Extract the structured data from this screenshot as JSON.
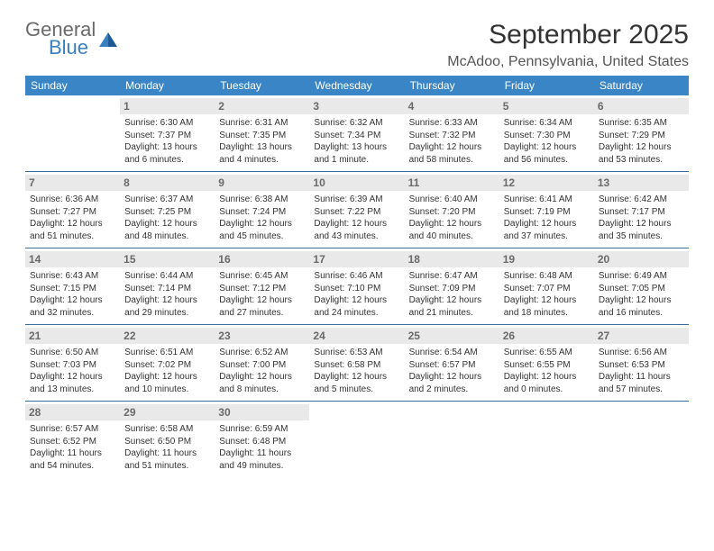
{
  "logo": {
    "text1": "General",
    "text2": "Blue"
  },
  "title": "September 2025",
  "location": "McAdoo, Pennsylvania, United States",
  "colors": {
    "header_bar": "#3a85c6",
    "header_text": "#ffffff",
    "daynum_bg": "#e9e9e9",
    "daynum_text": "#6a6a6a",
    "row_divider": "#3a6e9a",
    "logo_gray": "#6a6a6a",
    "logo_blue": "#3a7fc0"
  },
  "day_headers": [
    "Sunday",
    "Monday",
    "Tuesday",
    "Wednesday",
    "Thursday",
    "Friday",
    "Saturday"
  ],
  "weeks": [
    [
      {
        "blank": true
      },
      {
        "num": "1",
        "sunrise": "Sunrise: 6:30 AM",
        "sunset": "Sunset: 7:37 PM",
        "daylight": "Daylight: 13 hours and 6 minutes."
      },
      {
        "num": "2",
        "sunrise": "Sunrise: 6:31 AM",
        "sunset": "Sunset: 7:35 PM",
        "daylight": "Daylight: 13 hours and 4 minutes."
      },
      {
        "num": "3",
        "sunrise": "Sunrise: 6:32 AM",
        "sunset": "Sunset: 7:34 PM",
        "daylight": "Daylight: 13 hours and 1 minute."
      },
      {
        "num": "4",
        "sunrise": "Sunrise: 6:33 AM",
        "sunset": "Sunset: 7:32 PM",
        "daylight": "Daylight: 12 hours and 58 minutes."
      },
      {
        "num": "5",
        "sunrise": "Sunrise: 6:34 AM",
        "sunset": "Sunset: 7:30 PM",
        "daylight": "Daylight: 12 hours and 56 minutes."
      },
      {
        "num": "6",
        "sunrise": "Sunrise: 6:35 AM",
        "sunset": "Sunset: 7:29 PM",
        "daylight": "Daylight: 12 hours and 53 minutes."
      }
    ],
    [
      {
        "num": "7",
        "sunrise": "Sunrise: 6:36 AM",
        "sunset": "Sunset: 7:27 PM",
        "daylight": "Daylight: 12 hours and 51 minutes."
      },
      {
        "num": "8",
        "sunrise": "Sunrise: 6:37 AM",
        "sunset": "Sunset: 7:25 PM",
        "daylight": "Daylight: 12 hours and 48 minutes."
      },
      {
        "num": "9",
        "sunrise": "Sunrise: 6:38 AM",
        "sunset": "Sunset: 7:24 PM",
        "daylight": "Daylight: 12 hours and 45 minutes."
      },
      {
        "num": "10",
        "sunrise": "Sunrise: 6:39 AM",
        "sunset": "Sunset: 7:22 PM",
        "daylight": "Daylight: 12 hours and 43 minutes."
      },
      {
        "num": "11",
        "sunrise": "Sunrise: 6:40 AM",
        "sunset": "Sunset: 7:20 PM",
        "daylight": "Daylight: 12 hours and 40 minutes."
      },
      {
        "num": "12",
        "sunrise": "Sunrise: 6:41 AM",
        "sunset": "Sunset: 7:19 PM",
        "daylight": "Daylight: 12 hours and 37 minutes."
      },
      {
        "num": "13",
        "sunrise": "Sunrise: 6:42 AM",
        "sunset": "Sunset: 7:17 PM",
        "daylight": "Daylight: 12 hours and 35 minutes."
      }
    ],
    [
      {
        "num": "14",
        "sunrise": "Sunrise: 6:43 AM",
        "sunset": "Sunset: 7:15 PM",
        "daylight": "Daylight: 12 hours and 32 minutes."
      },
      {
        "num": "15",
        "sunrise": "Sunrise: 6:44 AM",
        "sunset": "Sunset: 7:14 PM",
        "daylight": "Daylight: 12 hours and 29 minutes."
      },
      {
        "num": "16",
        "sunrise": "Sunrise: 6:45 AM",
        "sunset": "Sunset: 7:12 PM",
        "daylight": "Daylight: 12 hours and 27 minutes."
      },
      {
        "num": "17",
        "sunrise": "Sunrise: 6:46 AM",
        "sunset": "Sunset: 7:10 PM",
        "daylight": "Daylight: 12 hours and 24 minutes."
      },
      {
        "num": "18",
        "sunrise": "Sunrise: 6:47 AM",
        "sunset": "Sunset: 7:09 PM",
        "daylight": "Daylight: 12 hours and 21 minutes."
      },
      {
        "num": "19",
        "sunrise": "Sunrise: 6:48 AM",
        "sunset": "Sunset: 7:07 PM",
        "daylight": "Daylight: 12 hours and 18 minutes."
      },
      {
        "num": "20",
        "sunrise": "Sunrise: 6:49 AM",
        "sunset": "Sunset: 7:05 PM",
        "daylight": "Daylight: 12 hours and 16 minutes."
      }
    ],
    [
      {
        "num": "21",
        "sunrise": "Sunrise: 6:50 AM",
        "sunset": "Sunset: 7:03 PM",
        "daylight": "Daylight: 12 hours and 13 minutes."
      },
      {
        "num": "22",
        "sunrise": "Sunrise: 6:51 AM",
        "sunset": "Sunset: 7:02 PM",
        "daylight": "Daylight: 12 hours and 10 minutes."
      },
      {
        "num": "23",
        "sunrise": "Sunrise: 6:52 AM",
        "sunset": "Sunset: 7:00 PM",
        "daylight": "Daylight: 12 hours and 8 minutes."
      },
      {
        "num": "24",
        "sunrise": "Sunrise: 6:53 AM",
        "sunset": "Sunset: 6:58 PM",
        "daylight": "Daylight: 12 hours and 5 minutes."
      },
      {
        "num": "25",
        "sunrise": "Sunrise: 6:54 AM",
        "sunset": "Sunset: 6:57 PM",
        "daylight": "Daylight: 12 hours and 2 minutes."
      },
      {
        "num": "26",
        "sunrise": "Sunrise: 6:55 AM",
        "sunset": "Sunset: 6:55 PM",
        "daylight": "Daylight: 12 hours and 0 minutes."
      },
      {
        "num": "27",
        "sunrise": "Sunrise: 6:56 AM",
        "sunset": "Sunset: 6:53 PM",
        "daylight": "Daylight: 11 hours and 57 minutes."
      }
    ],
    [
      {
        "num": "28",
        "sunrise": "Sunrise: 6:57 AM",
        "sunset": "Sunset: 6:52 PM",
        "daylight": "Daylight: 11 hours and 54 minutes."
      },
      {
        "num": "29",
        "sunrise": "Sunrise: 6:58 AM",
        "sunset": "Sunset: 6:50 PM",
        "daylight": "Daylight: 11 hours and 51 minutes."
      },
      {
        "num": "30",
        "sunrise": "Sunrise: 6:59 AM",
        "sunset": "Sunset: 6:48 PM",
        "daylight": "Daylight: 11 hours and 49 minutes."
      },
      {
        "blank": true
      },
      {
        "blank": true
      },
      {
        "blank": true
      },
      {
        "blank": true
      }
    ]
  ]
}
